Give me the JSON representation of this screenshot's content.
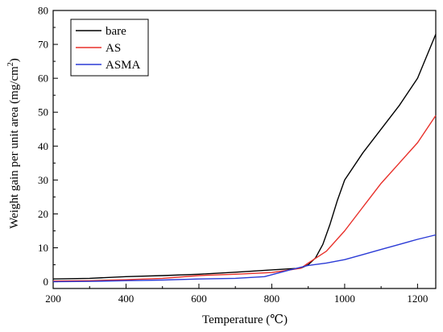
{
  "chart_data": {
    "type": "line",
    "title": "",
    "xlabel": "Temperature (℃)",
    "ylabel": "Weight gain per unit area (mg/cm²)",
    "ylabel_main": "Weight gain per unit area (mg/cm",
    "ylabel_sup": "2",
    "ylabel_end": ")",
    "xlim": [
      200,
      1250
    ],
    "ylim": [
      -2,
      80
    ],
    "xticks": [
      200,
      400,
      600,
      800,
      1000,
      1200
    ],
    "yticks": [
      0,
      10,
      20,
      30,
      40,
      50,
      60,
      70,
      80
    ],
    "grid": false,
    "legend_position": "top-left",
    "series": [
      {
        "name": "bare",
        "color": "#000000",
        "x": [
          200,
          300,
          400,
          500,
          600,
          700,
          800,
          850,
          880,
          900,
          920,
          940,
          960,
          980,
          1000,
          1050,
          1100,
          1150,
          1200,
          1250
        ],
        "y": [
          0.8,
          1.0,
          1.5,
          1.8,
          2.2,
          2.8,
          3.5,
          3.8,
          4.0,
          5.0,
          7.0,
          11.0,
          17.0,
          24.0,
          30.0,
          38.0,
          45.0,
          52.0,
          60.0,
          73.0
        ]
      },
      {
        "name": "AS",
        "color": "#e8302a",
        "x": [
          200,
          300,
          400,
          500,
          600,
          700,
          800,
          850,
          880,
          900,
          950,
          1000,
          1050,
          1100,
          1150,
          1200,
          1250
        ],
        "y": [
          0.2,
          0.3,
          0.6,
          1.0,
          1.8,
          2.2,
          2.7,
          3.5,
          4.0,
          5.5,
          9.0,
          15.0,
          22.0,
          29.0,
          35.0,
          41.0,
          49.0
        ]
      },
      {
        "name": "ASMA",
        "color": "#2b3bd6",
        "x": [
          200,
          300,
          400,
          500,
          600,
          700,
          780,
          850,
          900,
          950,
          1000,
          1050,
          1100,
          1150,
          1200,
          1250
        ],
        "y": [
          0.0,
          0.1,
          0.3,
          0.5,
          0.8,
          1.0,
          1.5,
          3.5,
          4.8,
          5.5,
          6.5,
          8.0,
          9.5,
          11.0,
          12.5,
          13.8
        ]
      }
    ]
  }
}
